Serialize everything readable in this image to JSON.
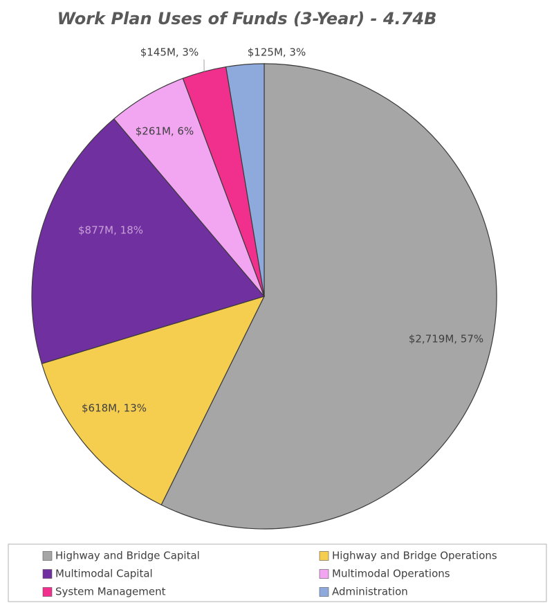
{
  "chart_data": {
    "type": "pie",
    "title": "Work Plan Uses of Funds (3-Year) - 4.74B",
    "categories": [
      "Highway and Bridge Capital",
      "Highway and Bridge Operations",
      "Multimodal Capital",
      "Multimodal Operations",
      "System Management",
      "Administration"
    ],
    "values": [
      2719,
      618,
      877,
      261,
      145,
      125
    ],
    "value_labels": [
      "$2,719M, 57%",
      "$618M, 13%",
      "$877M, 18%",
      "$261M, 6%",
      "$145M, 3%",
      "$125M, 3%"
    ],
    "colors": [
      "#a6a6a6",
      "#f5cd4f",
      "#7030a0",
      "#f2a6f2",
      "#f0308c",
      "#8eaadc"
    ],
    "legend": "bottom"
  }
}
